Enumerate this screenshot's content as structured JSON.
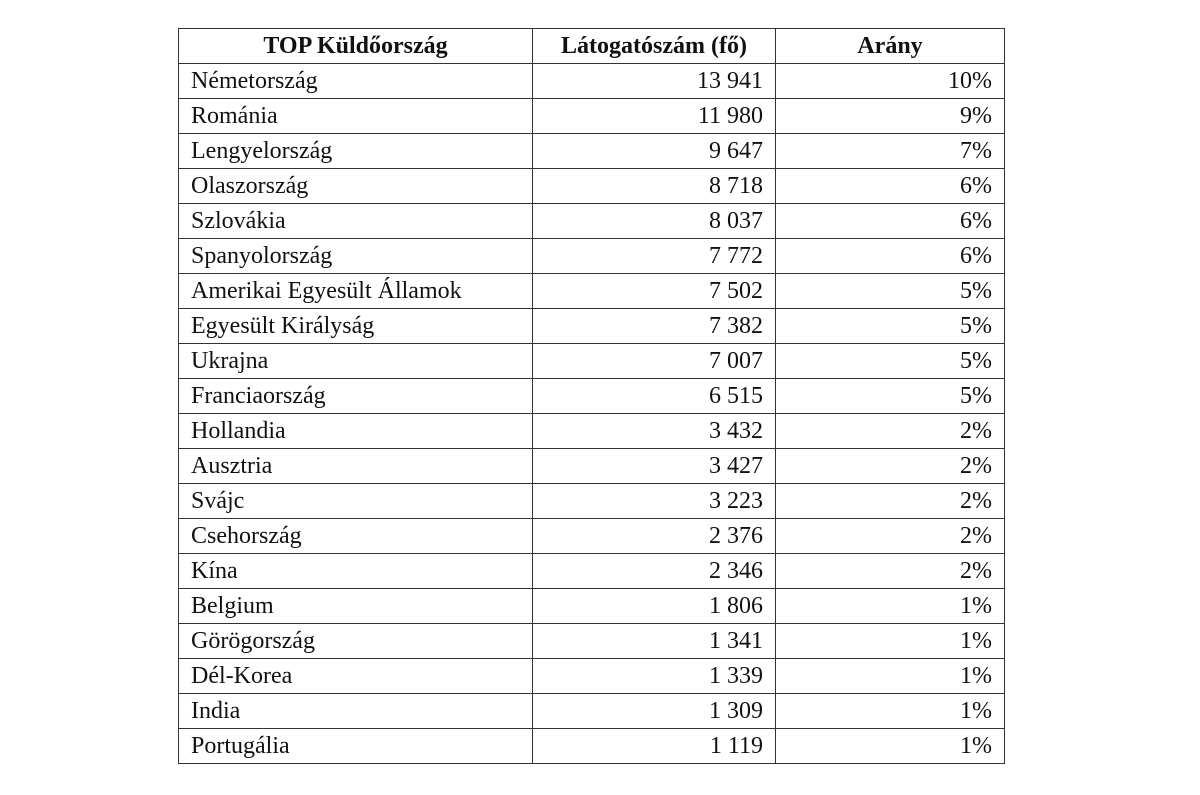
{
  "table": {
    "header": [
      "TOP Küldőország",
      "Látogatószám (fő)",
      "Arány"
    ],
    "rows": [
      [
        "Németország",
        "13 941",
        "10%"
      ],
      [
        "Románia",
        "11 980",
        "9%"
      ],
      [
        "Lengyelország",
        "9 647",
        "7%"
      ],
      [
        "Olaszország",
        "8 718",
        "6%"
      ],
      [
        "Szlovákia",
        "8 037",
        "6%"
      ],
      [
        "Spanyolország",
        "7 772",
        "6%"
      ],
      [
        "Amerikai Egyesült Államok",
        "7 502",
        "5%"
      ],
      [
        "Egyesült Királyság",
        "7 382",
        "5%"
      ],
      [
        "Ukrajna",
        "7 007",
        "5%"
      ],
      [
        "Franciaország",
        "6 515",
        "5%"
      ],
      [
        "Hollandia",
        "3 432",
        "2%"
      ],
      [
        "Ausztria",
        "3 427",
        "2%"
      ],
      [
        "Svájc",
        "3 223",
        "2%"
      ],
      [
        "Csehország",
        "2 376",
        "2%"
      ],
      [
        "Kína",
        "2 346",
        "2%"
      ],
      [
        "Belgium",
        "1 806",
        "1%"
      ],
      [
        "Görögország",
        "1 341",
        "1%"
      ],
      [
        "Dél-Korea",
        "1 339",
        "1%"
      ],
      [
        "India",
        "1 309",
        "1%"
      ],
      [
        "Portugália",
        "1 119",
        "1%"
      ]
    ]
  }
}
